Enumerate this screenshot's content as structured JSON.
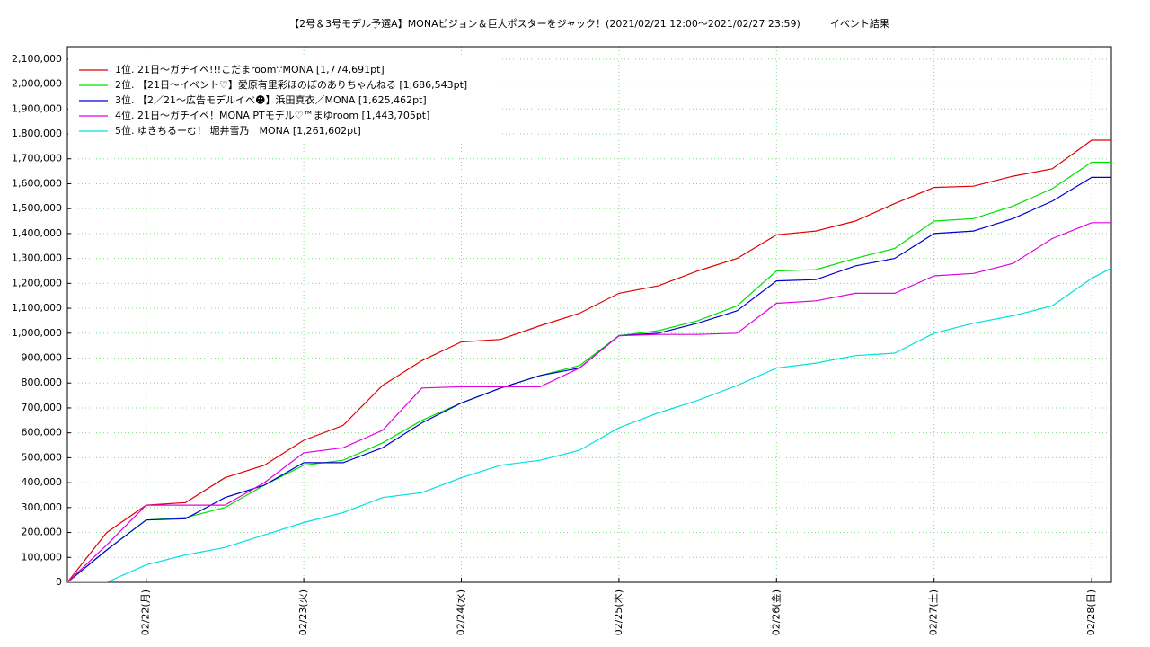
{
  "chart_data": {
    "type": "line",
    "title": "【2号＆3号モデル予選A】MONAビジョン＆巨大ポスターをジャック！(2021/02/21 12:00〜2021/02/27 23:59)　　　イベント結果",
    "x": [
      "02/21 12:00",
      "02/21 18:00",
      "02/22 00:00",
      "02/22 06:00",
      "02/22 12:00",
      "02/22 18:00",
      "02/23 00:00",
      "02/23 06:00",
      "02/23 12:00",
      "02/23 18:00",
      "02/24 00:00",
      "02/24 06:00",
      "02/24 12:00",
      "02/24 18:00",
      "02/25 00:00",
      "02/25 06:00",
      "02/25 12:00",
      "02/25 18:00",
      "02/26 00:00",
      "02/26 06:00",
      "02/26 12:00",
      "02/26 18:00",
      "02/27 00:00",
      "02/27 06:00",
      "02/27 12:00",
      "02/27 18:00",
      "02/28 00:00",
      "02/28 03:00"
    ],
    "series": [
      {
        "name": "1位. 21日〜ガチイベ!!!こだまroom∵MONA [1,774,691pt]",
        "color": "#e00000",
        "values": [
          0,
          200000,
          310000,
          320000,
          420000,
          470000,
          570000,
          630000,
          790000,
          890000,
          965000,
          975000,
          1030000,
          1080000,
          1160000,
          1190000,
          1250000,
          1300000,
          1395000,
          1410000,
          1450000,
          1520000,
          1585000,
          1590000,
          1630000,
          1660000,
          1774691,
          1774691
        ]
      },
      {
        "name": "2位. 【21日〜イベント♡】愛原有里彩ほのぼのありちゃんねる [1,686,543pt]",
        "color": "#00e000",
        "values": [
          0,
          130000,
          250000,
          260000,
          300000,
          390000,
          470000,
          490000,
          560000,
          650000,
          720000,
          780000,
          830000,
          870000,
          990000,
          1010000,
          1050000,
          1110000,
          1250000,
          1255000,
          1300000,
          1340000,
          1450000,
          1460000,
          1510000,
          1580000,
          1686543,
          1686543
        ]
      },
      {
        "name": "3位. 【2／21〜広告モデルイベ☻】浜田真衣／MONA [1,625,462pt]",
        "color": "#0000d0",
        "values": [
          0,
          130000,
          250000,
          255000,
          340000,
          390000,
          480000,
          480000,
          540000,
          640000,
          720000,
          780000,
          830000,
          860000,
          990000,
          1000000,
          1040000,
          1090000,
          1210000,
          1215000,
          1270000,
          1300000,
          1400000,
          1410000,
          1460000,
          1530000,
          1625462,
          1625462
        ]
      },
      {
        "name": "4位. 21日〜ガチイベ！MONA PTモデル♡™まゆroom [1,443,705pt]",
        "color": "#e000e0",
        "values": [
          0,
          150000,
          310000,
          310000,
          310000,
          400000,
          520000,
          540000,
          610000,
          780000,
          785000,
          785000,
          785000,
          860000,
          990000,
          995000,
          995000,
          1000000,
          1120000,
          1130000,
          1160000,
          1160000,
          1230000,
          1240000,
          1280000,
          1380000,
          1443705,
          1443705
        ]
      },
      {
        "name": "5位. ゆきちるーむ！ 堀井雪乃　MONA [1,261,602pt]",
        "color": "#00e0e0",
        "values": [
          0,
          0,
          70000,
          110000,
          140000,
          190000,
          240000,
          280000,
          340000,
          360000,
          420000,
          470000,
          490000,
          530000,
          620000,
          680000,
          730000,
          790000,
          860000,
          880000,
          910000,
          920000,
          1000000,
          1040000,
          1070000,
          1110000,
          1220000,
          1261602
        ]
      }
    ],
    "xlim": [
      "02/21 12:00",
      "02/28 03:00"
    ],
    "xticks": [
      {
        "value": "02/22 00:00",
        "label": "02/22(月)"
      },
      {
        "value": "02/23 00:00",
        "label": "02/23(火)"
      },
      {
        "value": "02/24 00:00",
        "label": "02/24(水)"
      },
      {
        "value": "02/25 00:00",
        "label": "02/25(木)"
      },
      {
        "value": "02/26 00:00",
        "label": "02/26(金)"
      },
      {
        "value": "02/27 00:00",
        "label": "02/27(土)"
      },
      {
        "value": "02/28 00:00",
        "label": "02/28(日)"
      }
    ],
    "ylim": [
      0,
      2150000
    ],
    "yticks": [
      0,
      {
        "value": 100000,
        "label": "100,000"
      },
      {
        "value": 200000,
        "label": "200,000"
      },
      {
        "value": 300000,
        "label": "300,000"
      },
      {
        "value": 400000,
        "label": "400,000"
      },
      {
        "value": 500000,
        "label": "500,000"
      },
      {
        "value": 600000,
        "label": "600,000"
      },
      {
        "value": 700000,
        "label": "700,000"
      },
      {
        "value": 800000,
        "label": "800,000"
      },
      {
        "value": 900000,
        "label": "900,000"
      },
      {
        "value": 1000000,
        "label": "1,000,000"
      },
      {
        "value": 1100000,
        "label": "1,100,000"
      },
      {
        "value": 1200000,
        "label": "1,200,000"
      },
      {
        "value": 1300000,
        "label": "1,300,000"
      },
      {
        "value": 1400000,
        "label": "1,400,000"
      },
      {
        "value": 1500000,
        "label": "1,500,000"
      },
      {
        "value": 1600000,
        "label": "1,600,000"
      },
      {
        "value": 1700000,
        "label": "1,700,000"
      },
      {
        "value": 1800000,
        "label": "1,800,000"
      },
      {
        "value": 1900000,
        "label": "1,900,000"
      },
      {
        "value": 2000000,
        "label": "2,000,000"
      },
      {
        "value": 2100000,
        "label": "2,100,000"
      }
    ],
    "grid": true,
    "legend": "upper left"
  }
}
